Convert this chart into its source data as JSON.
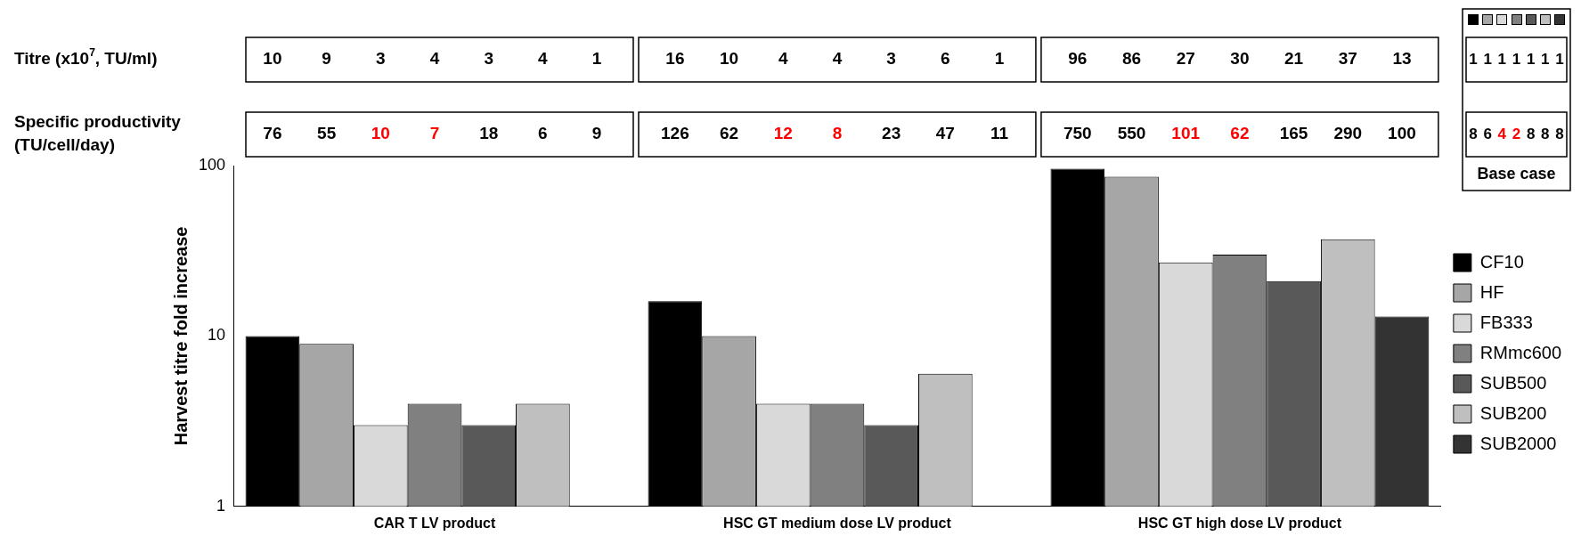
{
  "chart_data": {
    "type": "bar",
    "ylabel": "Harvest titre fold increase",
    "categories": [
      "CAR T LV product",
      "HSC GT medium dose LV product",
      "HSC GT high dose LV product"
    ],
    "series": [
      {
        "name": "CF10",
        "color": "#000000",
        "values": [
          10,
          16,
          96
        ]
      },
      {
        "name": "HF",
        "color": "#a6a6a6",
        "values": [
          9,
          10,
          86
        ]
      },
      {
        "name": "FB333",
        "color": "#d9d9d9",
        "values": [
          3,
          4,
          27
        ]
      },
      {
        "name": "RMmc600",
        "color": "#808080",
        "values": [
          4,
          4,
          30
        ]
      },
      {
        "name": "SUB500",
        "color": "#595959",
        "values": [
          3,
          3,
          21
        ]
      },
      {
        "name": "SUB200",
        "color": "#bfbfbf",
        "values": [
          4,
          6,
          37
        ]
      },
      {
        "name": "SUB2000",
        "color": "#333333",
        "values": [
          1,
          1,
          13
        ]
      }
    ],
    "log": "y",
    "ylim": [
      1,
      100
    ],
    "yticks": [
      1,
      10,
      100
    ],
    "grid": false,
    "legend": "right",
    "annotations": [
      "Titre (x10$^{7}$, TU/ml)",
      "Specific productivity",
      "(TU/cell/day)",
      "10",
      "9",
      "3",
      "4",
      "3",
      "4",
      "1",
      "16",
      "10",
      "4",
      "4",
      "3",
      "6",
      "1",
      "96",
      "86",
      "27",
      "30",
      "21",
      "37",
      "13",
      "76",
      "55",
      "10",
      "7",
      "18",
      "6",
      "9",
      "126",
      "62",
      "12",
      "8",
      "23",
      "47",
      "11",
      "750",
      "550",
      "101",
      "62",
      "165",
      "290",
      "100",
      "1",
      "1",
      "1",
      "1",
      "1",
      "1",
      "1",
      "8",
      "6",
      "4",
      "2",
      "8",
      "8",
      "8",
      "Base case"
    ]
  }
}
